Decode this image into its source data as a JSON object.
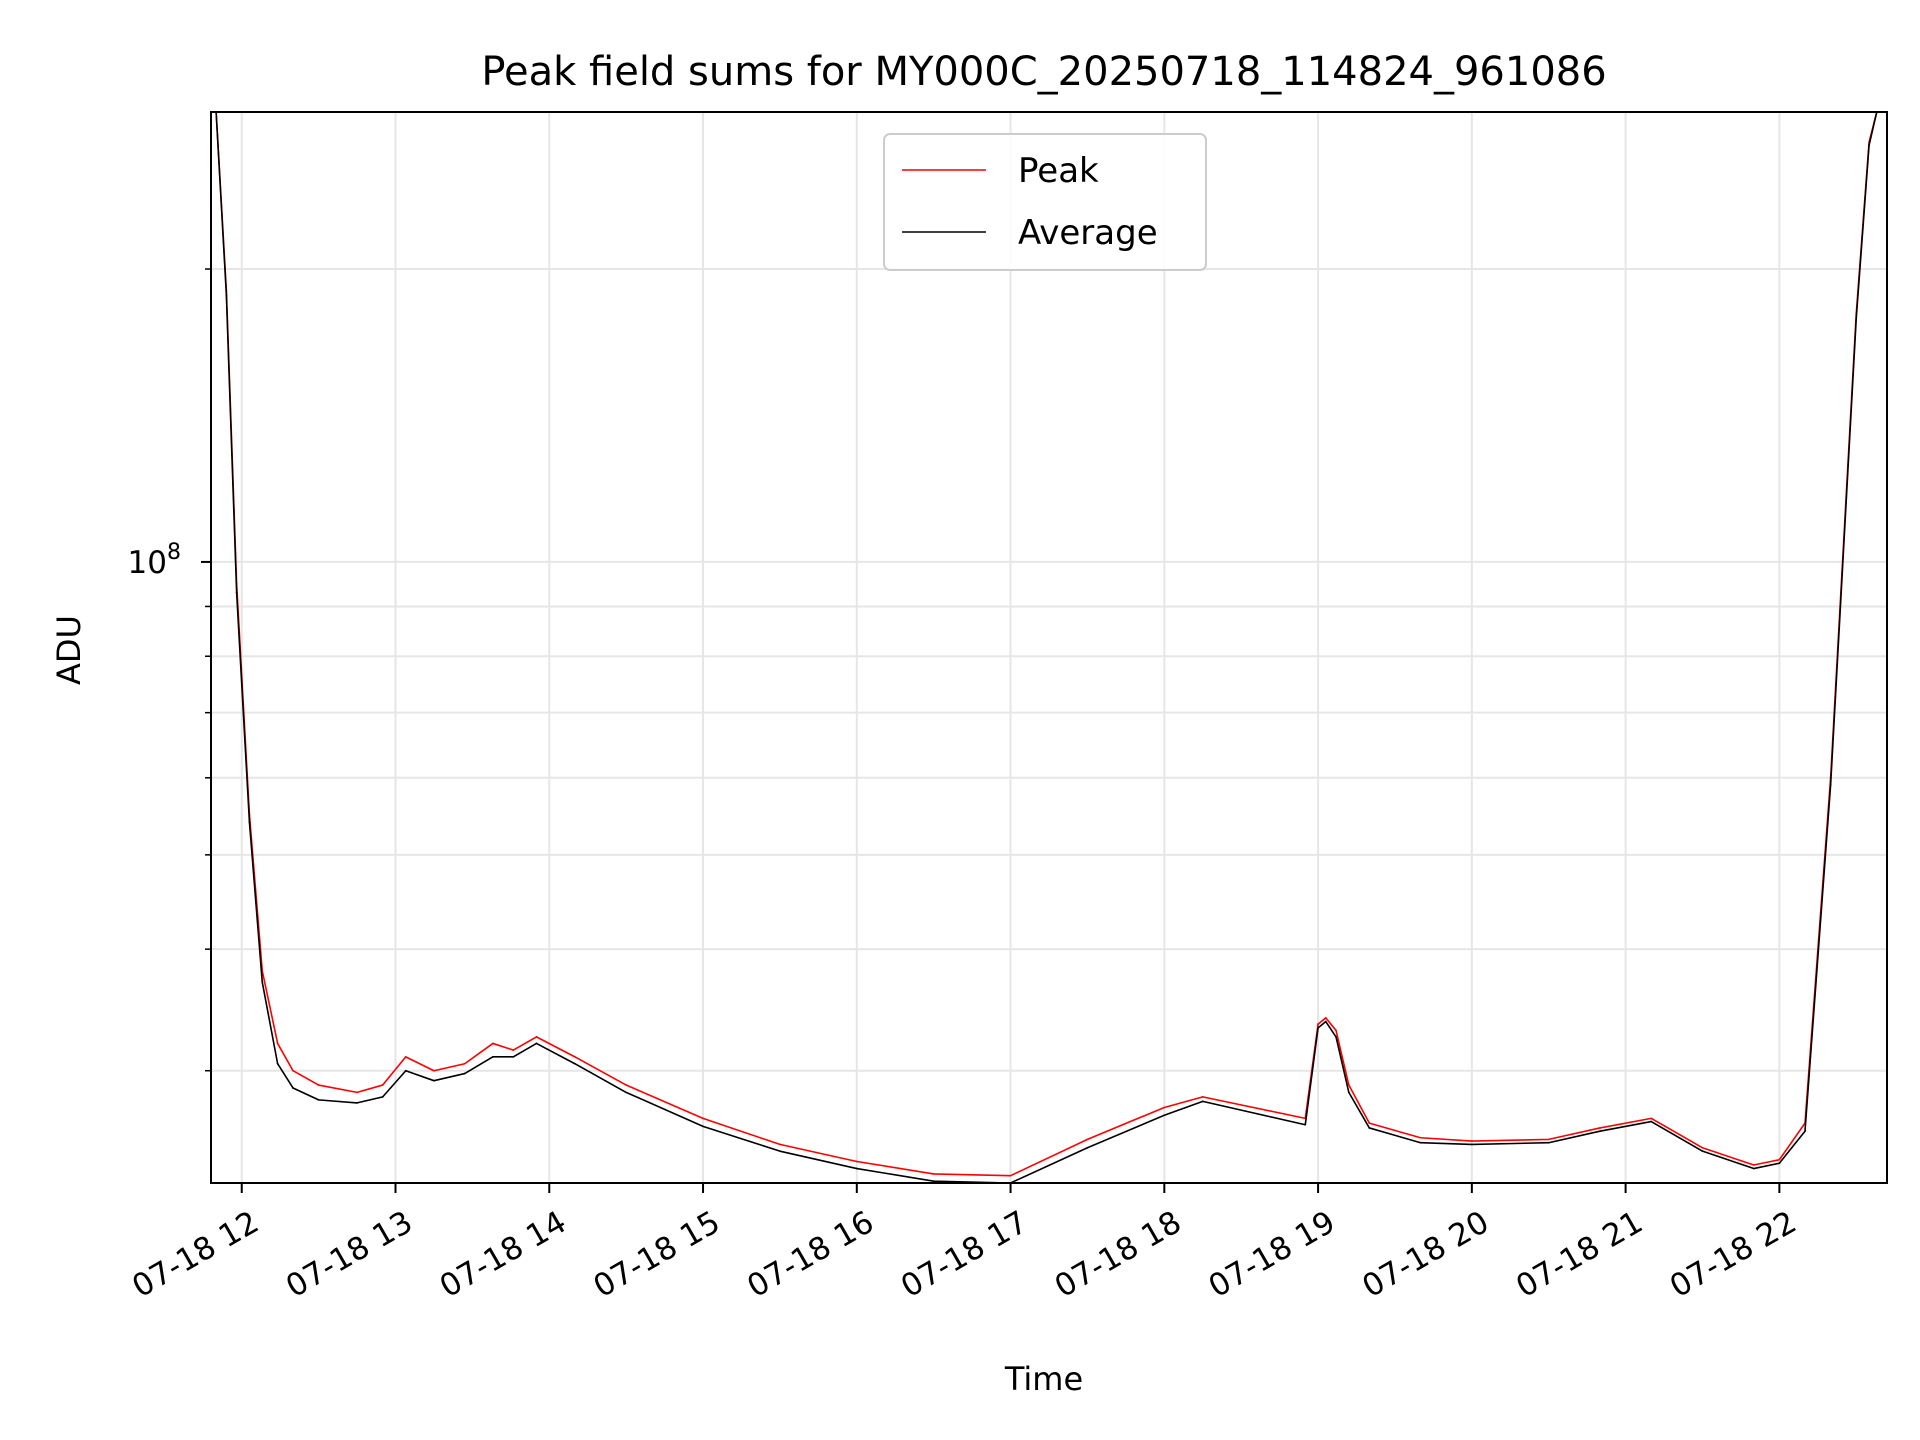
{
  "chart_data": {
    "type": "line",
    "title": "Peak field sums for MY000C_20250718_114824_961086",
    "xlabel": "Time",
    "ylabel": "ADU",
    "yscale": "log",
    "ylim": [
      23000000,
      290000000
    ],
    "xlim": [
      "2025-07-18 11:48",
      "2025-07-18 22:42"
    ],
    "x_tick_labels": [
      "07-18 12",
      "07-18 13",
      "07-18 14",
      "07-18 15",
      "07-18 16",
      "07-18 17",
      "07-18 18",
      "07-18 19",
      "07-18 20",
      "07-18 21",
      "07-18 22"
    ],
    "y_tick_label": {
      "base": "10",
      "exponent": "8"
    },
    "grid": true,
    "legend_position": "top-center",
    "series": [
      {
        "name": "Peak",
        "color": "#ff0000",
        "x": [
          "2025-07-18 11:50",
          "2025-07-18 11:54",
          "2025-07-18 11:58",
          "2025-07-18 12:03",
          "2025-07-18 12:08",
          "2025-07-18 12:14",
          "2025-07-18 12:20",
          "2025-07-18 12:30",
          "2025-07-18 12:45",
          "2025-07-18 12:55",
          "2025-07-18 13:04",
          "2025-07-18 13:15",
          "2025-07-18 13:27",
          "2025-07-18 13:38",
          "2025-07-18 13:46",
          "2025-07-18 13:55",
          "2025-07-18 14:10",
          "2025-07-18 14:30",
          "2025-07-18 15:00",
          "2025-07-18 15:30",
          "2025-07-18 16:00",
          "2025-07-18 16:30",
          "2025-07-18 17:00",
          "2025-07-18 17:30",
          "2025-07-18 18:00",
          "2025-07-18 18:15",
          "2025-07-18 18:55",
          "2025-07-18 19:00",
          "2025-07-18 19:03",
          "2025-07-18 19:07",
          "2025-07-18 19:12",
          "2025-07-18 19:20",
          "2025-07-18 19:40",
          "2025-07-18 20:00",
          "2025-07-18 20:30",
          "2025-07-18 20:50",
          "2025-07-18 21:10",
          "2025-07-18 21:30",
          "2025-07-18 21:50",
          "2025-07-18 22:00",
          "2025-07-18 22:10",
          "2025-07-18 22:20",
          "2025-07-18 22:30",
          "2025-07-18 22:35",
          "2025-07-18 22:38"
        ],
        "y": [
          290000000,
          190000000,
          95000000,
          55000000,
          38000000,
          32000000,
          30000000,
          29000000,
          28500000,
          29000000,
          31000000,
          30000000,
          30500000,
          32000000,
          31500000,
          32500000,
          31000000,
          29000000,
          26800000,
          25200000,
          24200000,
          23500000,
          23400000,
          25500000,
          27500000,
          28200000,
          26800000,
          33500000,
          34000000,
          33000000,
          29000000,
          26500000,
          25600000,
          25400000,
          25500000,
          26200000,
          26800000,
          25000000,
          24000000,
          24300000,
          26500000,
          60000000,
          180000000,
          270000000,
          290000000
        ]
      },
      {
        "name": "Average",
        "color": "#000000",
        "x": [
          "2025-07-18 11:50",
          "2025-07-18 11:54",
          "2025-07-18 11:58",
          "2025-07-18 12:03",
          "2025-07-18 12:08",
          "2025-07-18 12:14",
          "2025-07-18 12:20",
          "2025-07-18 12:30",
          "2025-07-18 12:45",
          "2025-07-18 12:55",
          "2025-07-18 13:04",
          "2025-07-18 13:15",
          "2025-07-18 13:27",
          "2025-07-18 13:38",
          "2025-07-18 13:46",
          "2025-07-18 13:55",
          "2025-07-18 14:10",
          "2025-07-18 14:30",
          "2025-07-18 15:00",
          "2025-07-18 15:30",
          "2025-07-18 16:00",
          "2025-07-18 16:30",
          "2025-07-18 17:00",
          "2025-07-18 17:30",
          "2025-07-18 18:00",
          "2025-07-18 18:15",
          "2025-07-18 18:55",
          "2025-07-18 19:00",
          "2025-07-18 19:03",
          "2025-07-18 19:07",
          "2025-07-18 19:12",
          "2025-07-18 19:20",
          "2025-07-18 19:40",
          "2025-07-18 20:00",
          "2025-07-18 20:30",
          "2025-07-18 20:50",
          "2025-07-18 21:10",
          "2025-07-18 21:30",
          "2025-07-18 21:50",
          "2025-07-18 22:00",
          "2025-07-18 22:10",
          "2025-07-18 22:20",
          "2025-07-18 22:30",
          "2025-07-18 22:35",
          "2025-07-18 22:38"
        ],
        "y": [
          290000000,
          188000000,
          93000000,
          54000000,
          37000000,
          30500000,
          28800000,
          28000000,
          27800000,
          28200000,
          30000000,
          29300000,
          29800000,
          31000000,
          31000000,
          32000000,
          30500000,
          28500000,
          26300000,
          24800000,
          23800000,
          23100000,
          23000000,
          25000000,
          27000000,
          27900000,
          26400000,
          33200000,
          33700000,
          32500000,
          28500000,
          26200000,
          25300000,
          25200000,
          25300000,
          26000000,
          26600000,
          24800000,
          23800000,
          24100000,
          26000000,
          59000000,
          178000000,
          268000000,
          290000000
        ]
      }
    ]
  }
}
